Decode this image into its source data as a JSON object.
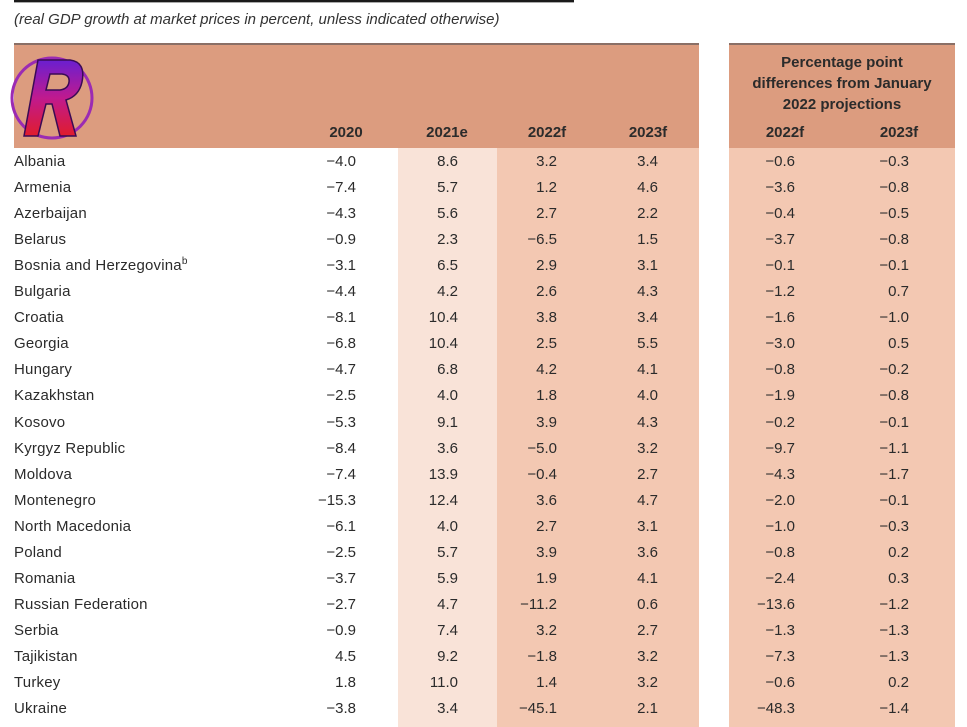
{
  "subtitle": "(real GDP growth at market prices in percent, unless indicated otherwise)",
  "header": {
    "col_2020": "2020",
    "col_2021": "2021e",
    "col_2022": "2022f",
    "col_2023": "2023f",
    "pp_title_line1": "Percentage point",
    "pp_title_line2": "differences from January",
    "pp_title_line3": "2022 projections",
    "diff_2022": "2022f",
    "diff_2023": "2023f"
  },
  "colors": {
    "header_bg": "#dc9c7f",
    "band_light": "#f9e3d8",
    "band_medium": "#f3c8b2"
  },
  "logo": {
    "icon": "r-letter-logo-icon",
    "letter": "R"
  },
  "rows": [
    {
      "country": "Albania",
      "sup": "",
      "y2020": "−4.0",
      "y2021": "8.6",
      "y2022": "3.2",
      "y2023": "3.4",
      "d2022": "−0.6",
      "d2023": "−0.3"
    },
    {
      "country": "Armenia",
      "sup": "",
      "y2020": "−7.4",
      "y2021": "5.7",
      "y2022": "1.2",
      "y2023": "4.6",
      "d2022": "−3.6",
      "d2023": "−0.8"
    },
    {
      "country": "Azerbaijan",
      "sup": "",
      "y2020": "−4.3",
      "y2021": "5.6",
      "y2022": "2.7",
      "y2023": "2.2",
      "d2022": "−0.4",
      "d2023": "−0.5"
    },
    {
      "country": "Belarus",
      "sup": "",
      "y2020": "−0.9",
      "y2021": "2.3",
      "y2022": "−6.5",
      "y2023": "1.5",
      "d2022": "−3.7",
      "d2023": "−0.8"
    },
    {
      "country": "Bosnia and Herzegovina",
      "sup": "b",
      "y2020": "−3.1",
      "y2021": "6.5",
      "y2022": "2.9",
      "y2023": "3.1",
      "d2022": "−0.1",
      "d2023": "−0.1"
    },
    {
      "country": "Bulgaria",
      "sup": "",
      "y2020": "−4.4",
      "y2021": "4.2",
      "y2022": "2.6",
      "y2023": "4.3",
      "d2022": "−1.2",
      "d2023": "0.7"
    },
    {
      "country": "Croatia",
      "sup": "",
      "y2020": "−8.1",
      "y2021": "10.4",
      "y2022": "3.8",
      "y2023": "3.4",
      "d2022": "−1.6",
      "d2023": "−1.0"
    },
    {
      "country": "Georgia",
      "sup": "",
      "y2020": "−6.8",
      "y2021": "10.4",
      "y2022": "2.5",
      "y2023": "5.5",
      "d2022": "−3.0",
      "d2023": "0.5"
    },
    {
      "country": "Hungary",
      "sup": "",
      "y2020": "−4.7",
      "y2021": "6.8",
      "y2022": "4.2",
      "y2023": "4.1",
      "d2022": "−0.8",
      "d2023": "−0.2"
    },
    {
      "country": "Kazakhstan",
      "sup": "",
      "y2020": "−2.5",
      "y2021": "4.0",
      "y2022": "1.8",
      "y2023": "4.0",
      "d2022": "−1.9",
      "d2023": "−0.8"
    },
    {
      "country": "Kosovo",
      "sup": "",
      "y2020": "−5.3",
      "y2021": "9.1",
      "y2022": "3.9",
      "y2023": "4.3",
      "d2022": "−0.2",
      "d2023": "−0.1"
    },
    {
      "country": "Kyrgyz Republic",
      "sup": "",
      "y2020": "−8.4",
      "y2021": "3.6",
      "y2022": "−5.0",
      "y2023": "3.2",
      "d2022": "−9.7",
      "d2023": "−1.1"
    },
    {
      "country": "Moldova",
      "sup": "",
      "y2020": "−7.4",
      "y2021": "13.9",
      "y2022": "−0.4",
      "y2023": "2.7",
      "d2022": "−4.3",
      "d2023": "−1.7"
    },
    {
      "country": "Montenegro",
      "sup": "",
      "y2020": "−15.3",
      "y2021": "12.4",
      "y2022": "3.6",
      "y2023": "4.7",
      "d2022": "−2.0",
      "d2023": "−0.1"
    },
    {
      "country": "North Macedonia",
      "sup": "",
      "y2020": "−6.1",
      "y2021": "4.0",
      "y2022": "2.7",
      "y2023": "3.1",
      "d2022": "−1.0",
      "d2023": "−0.3"
    },
    {
      "country": "Poland",
      "sup": "",
      "y2020": "−2.5",
      "y2021": "5.7",
      "y2022": "3.9",
      "y2023": "3.6",
      "d2022": "−0.8",
      "d2023": "0.2"
    },
    {
      "country": "Romania",
      "sup": "",
      "y2020": "−3.7",
      "y2021": "5.9",
      "y2022": "1.9",
      "y2023": "4.1",
      "d2022": "−2.4",
      "d2023": "0.3"
    },
    {
      "country": "Russian Federation",
      "sup": "",
      "y2020": "−2.7",
      "y2021": "4.7",
      "y2022": "−11.2",
      "y2023": "0.6",
      "d2022": "−13.6",
      "d2023": "−1.2"
    },
    {
      "country": "Serbia",
      "sup": "",
      "y2020": "−0.9",
      "y2021": "7.4",
      "y2022": "3.2",
      "y2023": "2.7",
      "d2022": "−1.3",
      "d2023": "−1.3"
    },
    {
      "country": "Tajikistan",
      "sup": "",
      "y2020": "4.5",
      "y2021": "9.2",
      "y2022": "−1.8",
      "y2023": "3.2",
      "d2022": "−7.3",
      "d2023": "−1.3"
    },
    {
      "country": "Turkey",
      "sup": "",
      "y2020": "1.8",
      "y2021": "11.0",
      "y2022": "1.4",
      "y2023": "3.2",
      "d2022": "−0.6",
      "d2023": "0.2"
    },
    {
      "country": "Ukraine",
      "sup": "",
      "y2020": "−3.8",
      "y2021": "3.4",
      "y2022": "−45.1",
      "y2023": "2.1",
      "d2022": "−48.3",
      "d2023": "−1.4"
    }
  ]
}
